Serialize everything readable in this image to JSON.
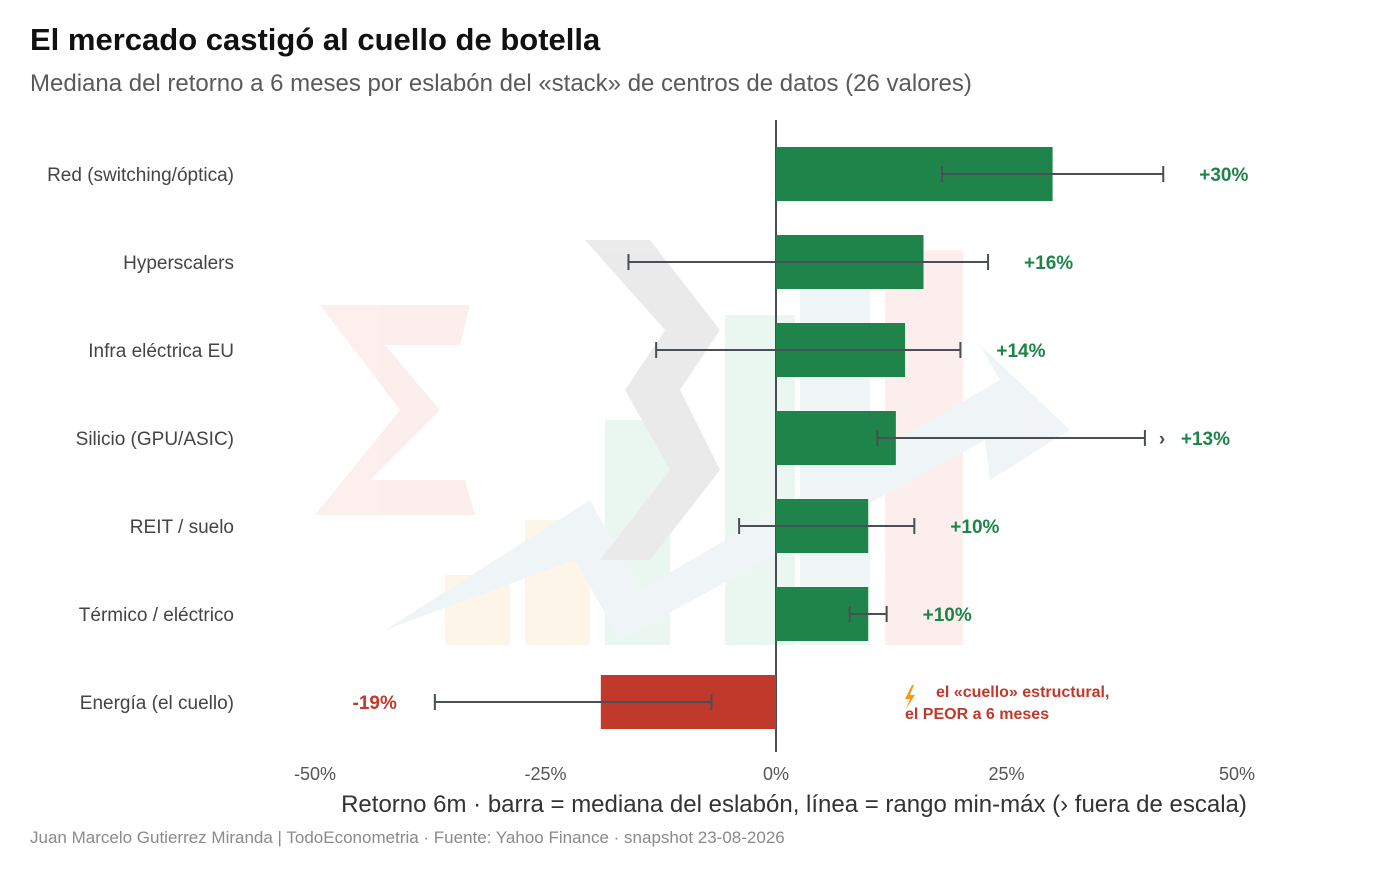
{
  "title": "El mercado castigó al cuello de botella",
  "subtitle": "Mediana del retorno a 6 meses por eslabón del «stack» de centros de datos (26 valores)",
  "caption": "Juan Marcelo Gutierrez Miranda | TodoEconometria  ·  Fuente: Yahoo Finance · snapshot 23-08-2026",
  "colors": {
    "positive": "#1e8449",
    "negative": "#c0392b",
    "errorbar": "#4a4f55",
    "axis": "#4a4f55"
  },
  "chart_data": {
    "type": "bar",
    "orientation": "horizontal",
    "xlabel": "Retorno 6m · barra = mediana del eslabón, línea = rango min-máx (› fuera de escala)",
    "xlim": [
      -50,
      50
    ],
    "xticks": [
      -50,
      -25,
      0,
      25,
      50
    ],
    "xtick_labels": [
      "-50%",
      "-25%",
      "0%",
      "25%",
      "50%"
    ],
    "grid": false,
    "categories": [
      "Red (switching/óptica)",
      "Hyperscalers",
      "Infra eléctrica EU",
      "Silicio (GPU/ASIC)",
      "REIT / suelo",
      "Térmico / eléctrico",
      "Energía (el cuello)"
    ],
    "values": [
      30,
      16,
      14,
      13,
      10,
      10,
      -19
    ],
    "value_labels": [
      "+30%",
      "+16%",
      "+14%",
      "+13%",
      "+10%",
      "+10%",
      "-19%"
    ],
    "range_min": [
      18,
      -16,
      -13,
      11,
      -4,
      8,
      -37
    ],
    "range_max": [
      42,
      23,
      20,
      45,
      15,
      12,
      -7
    ],
    "out_of_scale": [
      false,
      false,
      false,
      true,
      false,
      false,
      false
    ],
    "out_of_scale_marker": "›",
    "annotation": {
      "icon": "lightning-icon",
      "line1": "el «cuello» estructural,",
      "line2_prefix": "el ",
      "line2_bold": "PEOR",
      "line2_suffix": " a 6 meses"
    }
  }
}
